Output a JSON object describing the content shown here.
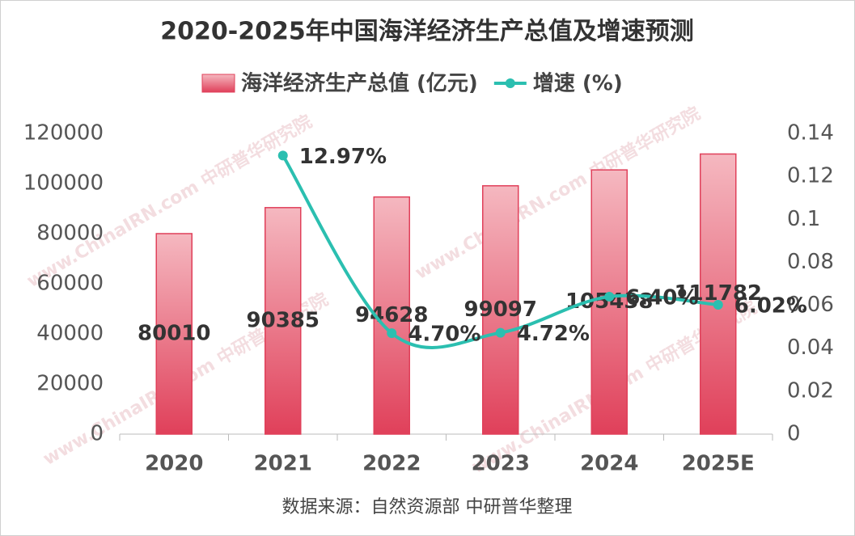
{
  "chart_data": {
    "type": "bar_line",
    "title": "2020-2025年中国海洋经济生产总值及增速预测",
    "source": "数据来源：自然资源部 中研普华整理",
    "watermark": "www.ChinaIRN.com 中研普华研究院",
    "categories": [
      "2020",
      "2021",
      "2022",
      "2023",
      "2024",
      "2025E"
    ],
    "series": [
      {
        "name": "海洋经济生产总值 (亿元)",
        "type": "bar",
        "color": "#e0405a",
        "values": [
          80010,
          90385,
          94628,
          99097,
          105438,
          111782
        ]
      },
      {
        "name": "增速 (%)",
        "type": "line",
        "axis": "y2",
        "color": "#2bbfb0",
        "values": [
          null,
          0.1297,
          0.047,
          0.0472,
          0.064,
          0.0602
        ],
        "value_labels": [
          null,
          "12.97%",
          "4.70%",
          "4.72%",
          "6.40%",
          "6.02%"
        ]
      }
    ],
    "ylim": [
      0,
      120000
    ],
    "yticks": [
      0,
      20000,
      40000,
      60000,
      80000,
      100000,
      120000
    ],
    "y2lim": [
      0,
      0.14
    ],
    "y2ticks": [
      0,
      0.02,
      0.04,
      0.06,
      0.08,
      0.1,
      0.12,
      0.14
    ],
    "legend": "top"
  }
}
